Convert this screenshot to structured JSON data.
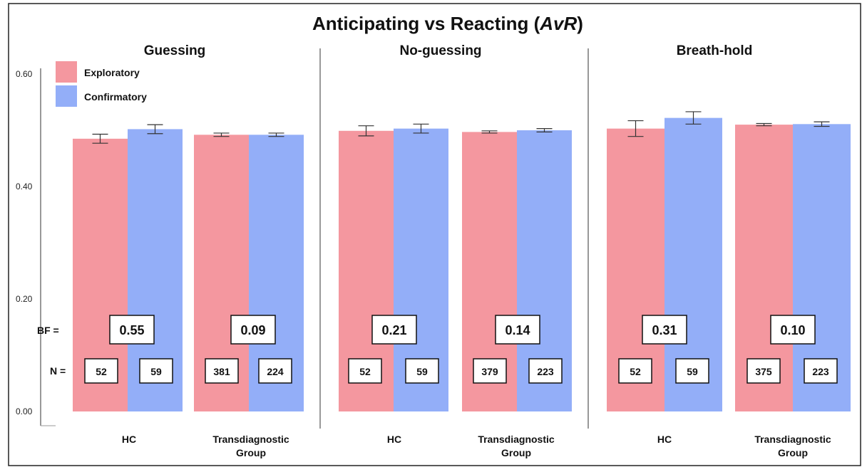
{
  "chart_data": {
    "type": "bar",
    "title_main": "Anticipating vs Reacting (",
    "title_italic": "AvR",
    "title_end": ")",
    "ylim": [
      0,
      0.6
    ],
    "yticks": [
      "0.00",
      "0.20",
      "0.40",
      "0.60"
    ],
    "yticks_values": [
      0,
      0.2,
      0.4,
      0.6
    ],
    "legend": [
      {
        "name": "Exploratory",
        "color": "#f4979f"
      },
      {
        "name": "Confirmatory",
        "color": "#93aef8"
      }
    ],
    "legend_placement": "top-left",
    "bf_label": "BF =",
    "n_label": "N =",
    "panels": [
      {
        "title": "Guessing",
        "groups": [
          {
            "label": [
              "HC"
            ],
            "values": [
              0.485,
              0.502
            ],
            "errors": [
              0.008,
              0.008
            ],
            "bf": "0.55",
            "n": [
              "52",
              "59"
            ]
          },
          {
            "label": [
              "Transdiagnostic",
              "Group"
            ],
            "values": [
              0.492,
              0.492
            ],
            "errors": [
              0.003,
              0.003
            ],
            "bf": "0.09",
            "n": [
              "381",
              "224"
            ]
          }
        ]
      },
      {
        "title": "No-guessing",
        "groups": [
          {
            "label": [
              "HC"
            ],
            "values": [
              0.499,
              0.503
            ],
            "errors": [
              0.009,
              0.008
            ],
            "bf": "0.21",
            "n": [
              "52",
              "59"
            ]
          },
          {
            "label": [
              "Transdiagnostic",
              "Group"
            ],
            "values": [
              0.497,
              0.5
            ],
            "errors": [
              0.002,
              0.003
            ],
            "bf": "0.14",
            "n": [
              "379",
              "223"
            ]
          }
        ]
      },
      {
        "title": "Breath-hold",
        "groups": [
          {
            "label": [
              "HC"
            ],
            "values": [
              0.503,
              0.522
            ],
            "errors": [
              0.014,
              0.011
            ],
            "bf": "0.31",
            "n": [
              "52",
              "59"
            ]
          },
          {
            "label": [
              "Transdiagnostic",
              "Group"
            ],
            "values": [
              0.51,
              0.511
            ],
            "errors": [
              0.002,
              0.004
            ],
            "bf": "0.10",
            "n": [
              "375",
              "223"
            ]
          }
        ]
      }
    ]
  }
}
